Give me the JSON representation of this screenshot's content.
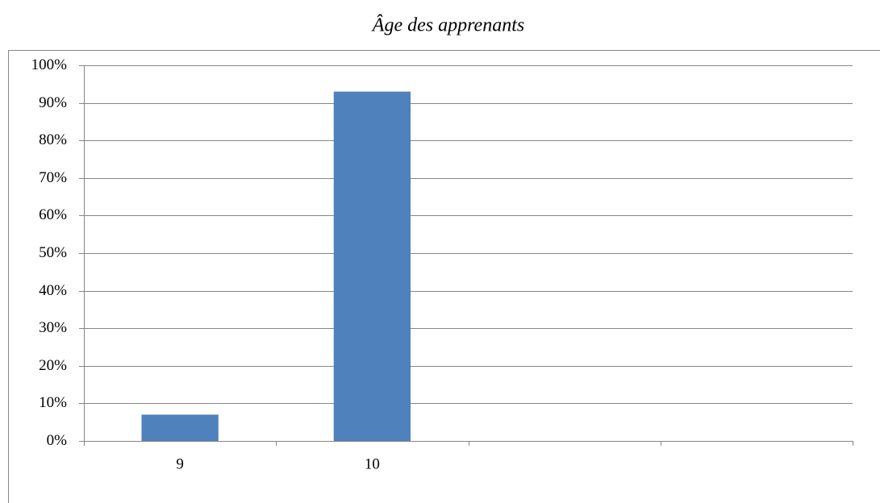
{
  "chart_data": {
    "type": "bar",
    "title": "Âge des apprenants",
    "categories": [
      "9",
      "10",
      null,
      null
    ],
    "values": [
      7,
      93,
      null,
      null
    ],
    "color": "#4f81bd",
    "ylim": [
      0,
      100
    ],
    "yticks": [
      {
        "value": 0,
        "label": "0%"
      },
      {
        "value": 10,
        "label": "10%"
      },
      {
        "value": 20,
        "label": "20%"
      },
      {
        "value": 30,
        "label": "30%"
      },
      {
        "value": 40,
        "label": "40%"
      },
      {
        "value": 50,
        "label": "50%"
      },
      {
        "value": 60,
        "label": "60%"
      },
      {
        "value": 70,
        "label": "70%"
      },
      {
        "value": 80,
        "label": "80%"
      },
      {
        "value": 90,
        "label": "90%"
      },
      {
        "value": 100,
        "label": "100%"
      }
    ],
    "grid": true
  }
}
